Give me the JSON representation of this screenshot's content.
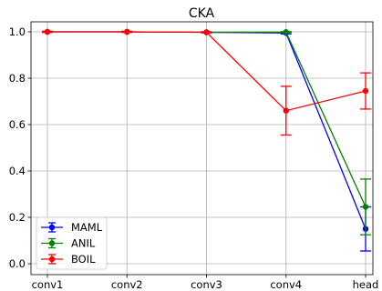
{
  "chart_data": {
    "type": "line",
    "title": "CKA",
    "xlabel": "",
    "ylabel": "",
    "categories": [
      "conv1",
      "conv2",
      "conv3",
      "conv4",
      "head"
    ],
    "ylim": [
      -0.04,
      1.06
    ],
    "yticks": [
      "0.0",
      "0.2",
      "0.4",
      "0.6",
      "0.8",
      "1.0"
    ],
    "grid": true,
    "legend_position": "lower-left",
    "series": [
      {
        "name": "MAML",
        "color": "#0000ff",
        "values": [
          1.0,
          1.0,
          0.998,
          0.995,
          0.15
        ],
        "errors": [
          0.002,
          0.002,
          0.002,
          0.004,
          0.095
        ]
      },
      {
        "name": "ANIL",
        "color": "#008000",
        "values": [
          1.0,
          1.0,
          0.998,
          0.999,
          0.245
        ],
        "errors": [
          0.002,
          0.002,
          0.002,
          0.002,
          0.12
        ]
      },
      {
        "name": "BOIL",
        "color": "#ff0000",
        "values": [
          1.0,
          1.0,
          0.998,
          0.66,
          0.745
        ],
        "errors": [
          0.002,
          0.002,
          0.002,
          0.105,
          0.078
        ]
      }
    ]
  }
}
